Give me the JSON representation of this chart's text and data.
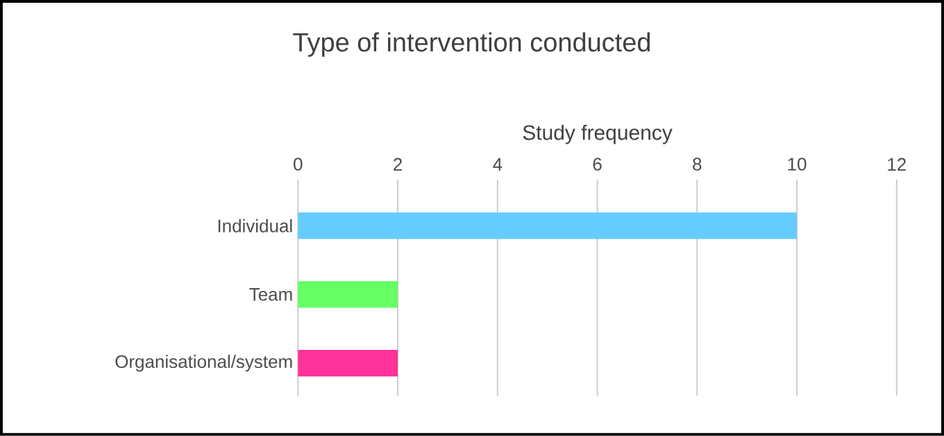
{
  "chart_data": {
    "type": "bar",
    "orientation": "horizontal",
    "title": "Type of intervention conducted",
    "xlabel": "Study frequency",
    "categories": [
      "Individual",
      "Team",
      "Organisational/system"
    ],
    "values": [
      10,
      2,
      2
    ],
    "colors": [
      "#66ccff",
      "#66ff66",
      "#ff3399"
    ],
    "xlim": [
      0,
      12
    ],
    "xticks": [
      0,
      2,
      4,
      6,
      8,
      10,
      12
    ],
    "grid": "x"
  }
}
